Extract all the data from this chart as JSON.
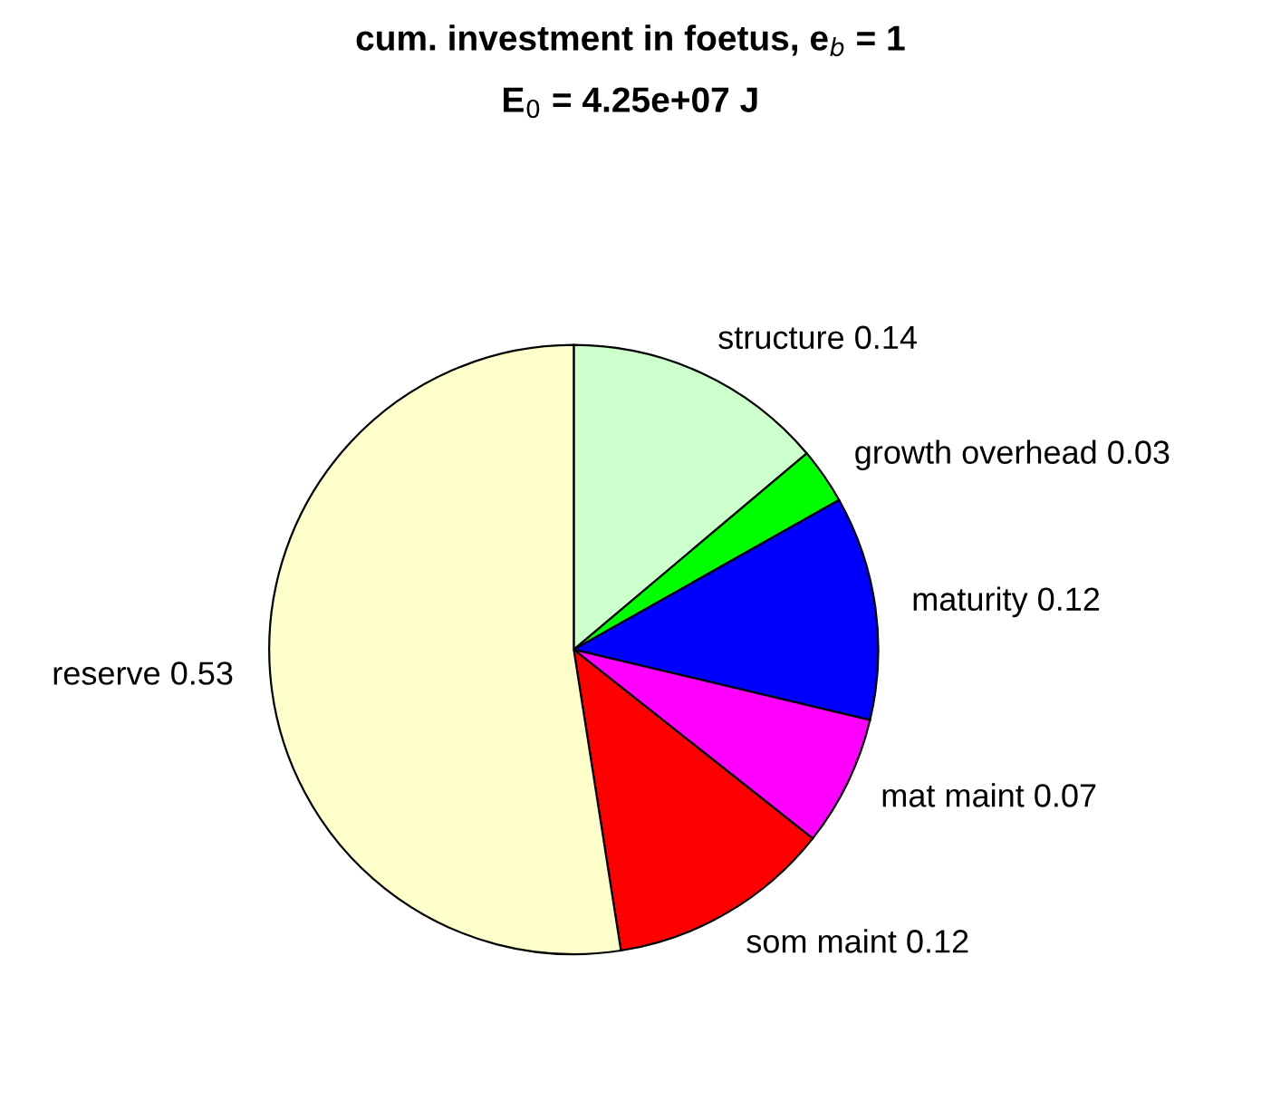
{
  "chart_data": {
    "type": "pie",
    "title": "cum. investment in foetus, e$_{b}$ = 1",
    "subtitle": "E$_{0}$ = 4.25e+07 J",
    "categories": [
      "structure",
      "growth overhead",
      "maturity",
      "mat maint",
      "som maint",
      "reserve"
    ],
    "values": [
      0.14,
      0.03,
      0.12,
      0.07,
      0.12,
      0.53
    ],
    "value_labels": [
      "0.14",
      "0.03",
      "0.12",
      "0.07",
      "0.12",
      "0.53"
    ],
    "colors": [
      "#ccffcc",
      "#00ff00",
      "#0000ff",
      "#ff00ff",
      "#ff0000",
      "#ffffcc"
    ],
    "legend": false
  }
}
